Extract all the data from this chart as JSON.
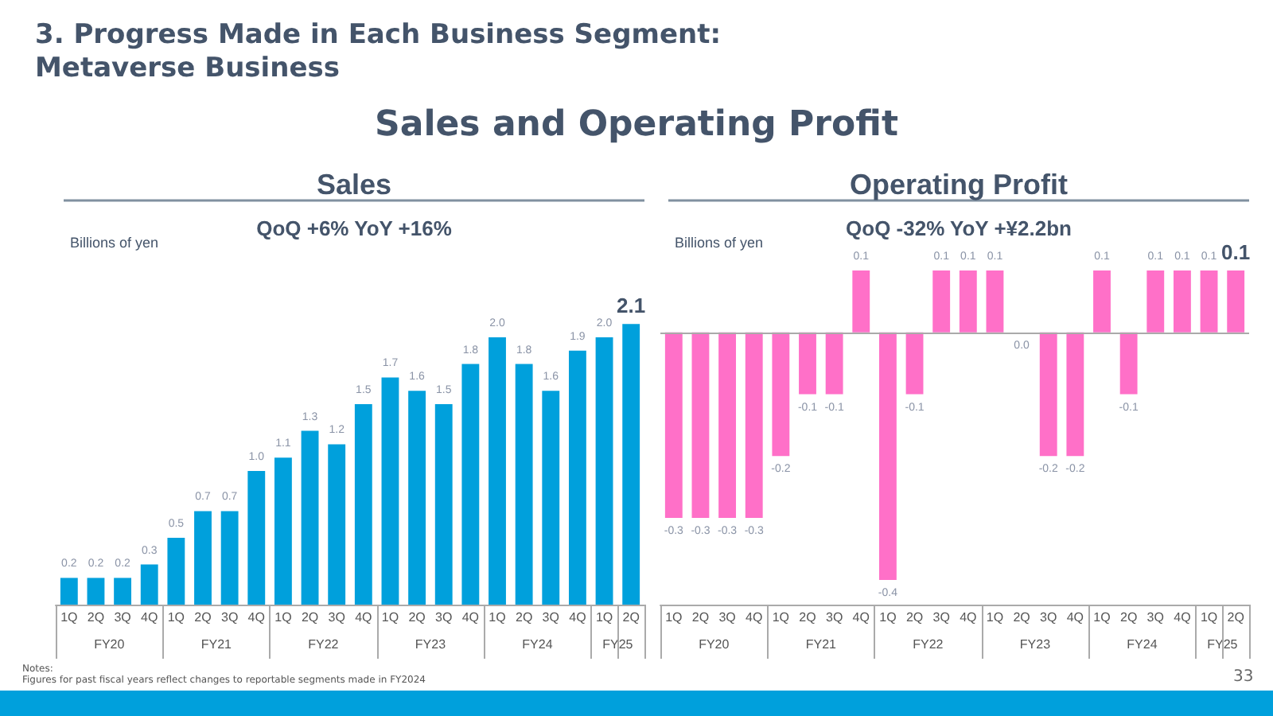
{
  "chart_data": [
    {
      "type": "bar",
      "title": "Sales",
      "subtitle": "QoQ +6% YoY +16%",
      "ylabel": "Billions of yen",
      "categories": [
        "1Q",
        "2Q",
        "3Q",
        "4Q",
        "1Q",
        "2Q",
        "3Q",
        "4Q",
        "1Q",
        "2Q",
        "3Q",
        "4Q",
        "1Q",
        "2Q",
        "3Q",
        "4Q",
        "1Q",
        "2Q",
        "3Q",
        "4Q",
        "1Q",
        "2Q"
      ],
      "values": [
        0.2,
        0.2,
        0.2,
        0.3,
        0.5,
        0.7,
        0.7,
        1.0,
        1.1,
        1.3,
        1.2,
        1.5,
        1.7,
        1.6,
        1.5,
        1.8,
        2.0,
        1.8,
        1.6,
        1.9,
        2.0,
        2.1
      ],
      "value_labels": [
        "0.2",
        "0.2",
        "0.2",
        "0.3",
        "0.5",
        "0.7",
        "0.7",
        "1.0",
        "1.1",
        "1.3",
        "1.2",
        "1.5",
        "1.7",
        "1.6",
        "1.5",
        "1.8",
        "2.0",
        "1.8",
        "1.6",
        "1.9",
        "2.0",
        "2.1"
      ],
      "color": "#00a0dc",
      "annotations": [
        "FY20",
        "FY21",
        "FY22",
        "FY23",
        "FY24",
        "FY25"
      ]
    },
    {
      "type": "bar",
      "title": "Operating Profit",
      "subtitle": "QoQ -32% YoY +¥2.2bn",
      "ylabel": "Billions of yen",
      "categories": [
        "1Q",
        "2Q",
        "3Q",
        "4Q",
        "1Q",
        "2Q",
        "3Q",
        "4Q",
        "1Q",
        "2Q",
        "3Q",
        "4Q",
        "1Q",
        "2Q",
        "3Q",
        "4Q",
        "1Q",
        "2Q",
        "3Q",
        "4Q",
        "1Q",
        "2Q"
      ],
      "values": [
        -0.3,
        -0.3,
        -0.3,
        -0.3,
        -0.2,
        -0.1,
        -0.1,
        0.1,
        -0.4,
        -0.1,
        0.1,
        0.1,
        0.1,
        0.0,
        -0.2,
        -0.2,
        0.1,
        -0.1,
        0.1,
        0.1,
        0.1,
        0.1
      ],
      "value_labels": [
        "-0.3",
        "-0.3",
        "-0.3",
        "-0.3",
        "-0.2",
        "-0.1",
        "-0.1",
        "0.1",
        "-0.4",
        "-0.1",
        "0.1",
        "0.1",
        "0.1",
        "0.0",
        "-0.2",
        "-0.2",
        "0.1",
        "-0.1",
        "0.1",
        "0.1",
        "0.1",
        "0.1"
      ],
      "color": "#ff70c8",
      "ref_lines": [
        {
          "axis": "y",
          "value": 0,
          "color": "#aaaaaa"
        }
      ],
      "annotations": [
        "FY20",
        "FY21",
        "FY22",
        "FY23",
        "FY24",
        "FY25"
      ]
    },
    {
      "type": "other",
      "title": "3. Progress Made in Each Business Segment: Metaverse Business",
      "subtitle": "Sales and Operating Profit",
      "annotations": [
        "Notes:",
        "Figures for past fiscal years reflect changes to reportable segments made in FY2024",
        "33"
      ]
    }
  ]
}
